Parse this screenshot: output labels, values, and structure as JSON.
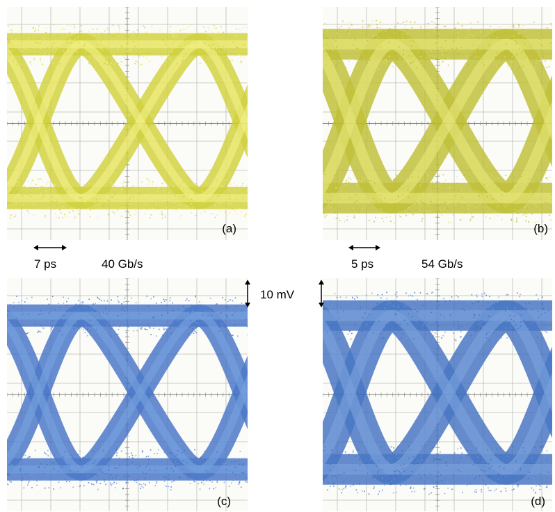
{
  "panels": [
    {
      "id": "a",
      "label": "(a)",
      "trace_color": "#cfcf32",
      "trace_highlight": "#efee7a",
      "eye": "open"
    },
    {
      "id": "b",
      "label": "(b)",
      "trace_color": "#bcbc2c",
      "trace_highlight": "#e3e26c",
      "eye": "narrow"
    },
    {
      "id": "c",
      "label": "(c)",
      "trace_color": "#3e6fc4",
      "trace_highlight": "#6a99dc",
      "eye": "open"
    },
    {
      "id": "d",
      "label": "(d)",
      "trace_color": "#3c6cbf",
      "trace_highlight": "#6e9ad9",
      "eye": "narrow"
    }
  ],
  "annotations": {
    "time_scale_left": "7 ps",
    "bitrate_left": "40 Gb/s",
    "time_scale_right": "5 ps",
    "bitrate_right": "54 Gb/s",
    "voltage_scale": "10 mV"
  },
  "colors": {
    "grid": "#bdbdb6",
    "background": "#fbfbf8"
  }
}
